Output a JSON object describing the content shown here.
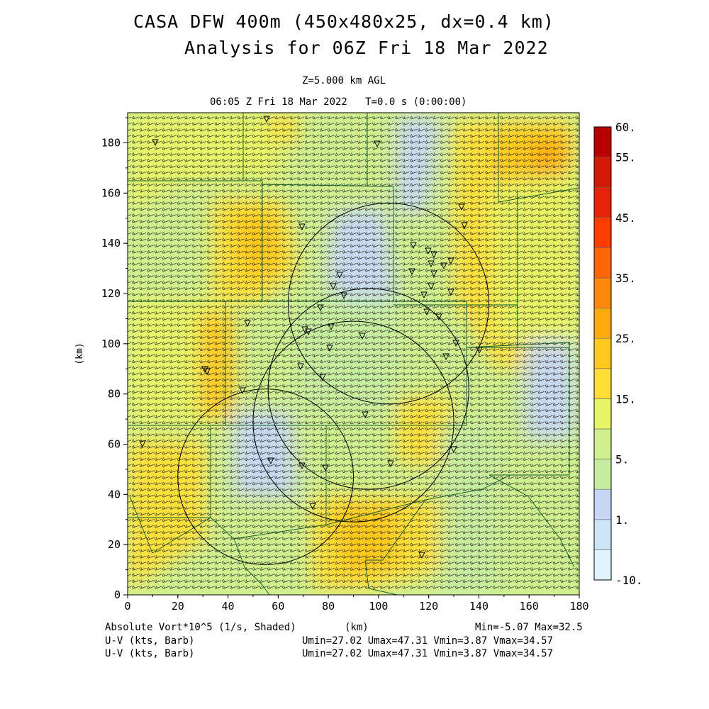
{
  "header": {
    "title_line1": "CASA DFW 400m (450x480x25, dx=0.4 km)",
    "title_line2": "Analysis for 06Z Fri 18 Mar 2022",
    "level": "Z=5.000 km AGL",
    "time": "06:05 Z Fri 18 Mar 2022   T=0.0 s (0:00:00)"
  },
  "footer": {
    "field_label": "Absolute Vort*10^5 (1/s, Shaded)",
    "xunit": "(km)",
    "minmax": "Min=-5.07 Max=32.5",
    "uv_label_1": "U-V (kts, Barb)",
    "uv_stats_1": "Umin=27.02 Umax=47.31 Vmin=3.87 Vmax=34.57",
    "uv_label_2": "U-V (kts, Barb)",
    "uv_stats_2": "Umin=27.02 Umax=47.31 Vmin=3.87 Vmax=34.57"
  },
  "chart_data": {
    "type": "heatmap",
    "xlabel": "",
    "ylabel": "(km)",
    "xlim": [
      0,
      180
    ],
    "ylim": [
      0,
      192
    ],
    "xticks": [
      "0",
      "20",
      "40",
      "60",
      "80",
      "100",
      "120",
      "140",
      "160",
      "180"
    ],
    "yticks": [
      "0",
      "20",
      "40",
      "60",
      "80",
      "100",
      "120",
      "140",
      "160",
      "180"
    ],
    "colorbar": {
      "labels": [
        {
          "text": "60.",
          "value": 60
        },
        {
          "text": "55.",
          "value": 55
        },
        {
          "text": "45.",
          "value": 45
        },
        {
          "text": "35.",
          "value": 35
        },
        {
          "text": "25.",
          "value": 25
        },
        {
          "text": "15.",
          "value": 15
        },
        {
          "text": "5.",
          "value": 5
        },
        {
          "text": "1.",
          "value": 1
        },
        {
          "text": "-10.",
          "value": -10
        }
      ],
      "colors": [
        "#e0f4fb",
        "#cce6f6",
        "#c6d6f4",
        "#c6eca0",
        "#d0f090",
        "#e6f666",
        "#ffde36",
        "#ffc81c",
        "#ffaa0c",
        "#ff880c",
        "#ff6406",
        "#ff3c00",
        "#e82206",
        "#d41806",
        "#b80000"
      ]
    },
    "radar_circles": [
      {
        "center_km": [
          55,
          47
        ],
        "radius_km": 35
      },
      {
        "center_km": [
          90,
          69
        ],
        "radius_km": 40
      },
      {
        "center_km": [
          96,
          82
        ],
        "radius_km": 40
      },
      {
        "center_km": [
          104,
          116
        ],
        "radius_km": 40
      }
    ],
    "field_min": -5.07,
    "field_max": 32.5,
    "wind_barb_stats": {
      "umin": 27.02,
      "umax": 47.31,
      "vmin": 3.87,
      "vmax": 34.57
    }
  }
}
